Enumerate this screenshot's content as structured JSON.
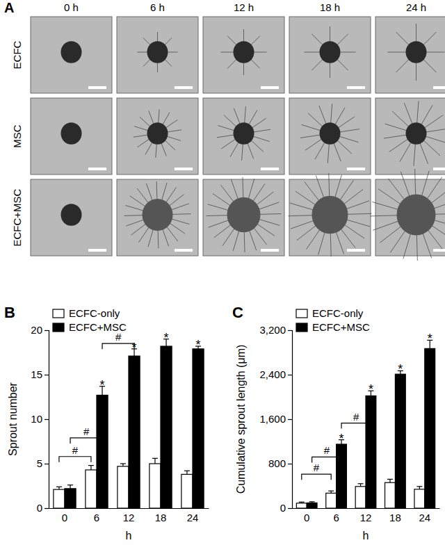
{
  "panel_a": {
    "label": "A",
    "columns": [
      "0 h",
      "6 h",
      "12 h",
      "18 h",
      "24 h"
    ],
    "rows": [
      "ECFC",
      "MSC",
      "ECFC+MSC"
    ]
  },
  "chart_data": [
    {
      "type": "bar",
      "panel": "B",
      "x_label": "h",
      "y_label": "Sprout number",
      "categories": [
        "0",
        "6",
        "12",
        "18",
        "24"
      ],
      "series": [
        {
          "name": "ECFC-only",
          "color": "#ffffff",
          "values": [
            2.1,
            4.3,
            4.7,
            5.0,
            3.8
          ],
          "errors": [
            0.3,
            0.5,
            0.3,
            0.6,
            0.4
          ],
          "significance": [
            null,
            null,
            null,
            null,
            null
          ]
        },
        {
          "name": "ECFC+MSC",
          "color": "#000000",
          "values": [
            2.2,
            12.7,
            17.1,
            18.2,
            17.9
          ],
          "errors": [
            0.4,
            1.0,
            0.8,
            0.8,
            0.3
          ],
          "significance": [
            null,
            "*",
            "*",
            "*",
            "*"
          ]
        }
      ],
      "annotations": [
        {
          "text": "#",
          "y": 5.8,
          "between": [
            {
              "category": "0",
              "series": "ECFC-only"
            },
            {
              "category": "6",
              "series": "ECFC-only"
            }
          ]
        },
        {
          "text": "#",
          "y": 7.9,
          "between": [
            {
              "category": "0",
              "series": "ECFC+MSC"
            },
            {
              "category": "6",
              "series": "ECFC+MSC"
            }
          ]
        },
        {
          "text": "#",
          "y": 18.5,
          "between": [
            {
              "category": "6",
              "series": "ECFC+MSC"
            },
            {
              "category": "12",
              "series": "ECFC+MSC"
            }
          ]
        }
      ],
      "ylim": [
        0,
        20
      ],
      "yticks": [
        0,
        5,
        10,
        15,
        20
      ],
      "grid": false,
      "legend": "upper left"
    },
    {
      "type": "bar",
      "panel": "C",
      "x_label": "h",
      "y_label": "Cumulative sprout length (μm)",
      "categories": [
        "0",
        "6",
        "12",
        "18",
        "24"
      ],
      "series": [
        {
          "name": "ECFC-only",
          "color": "#ffffff",
          "values": [
            90,
            270,
            390,
            460,
            340
          ],
          "errors": [
            20,
            40,
            50,
            60,
            50
          ],
          "significance": [
            null,
            null,
            null,
            null,
            null
          ]
        },
        {
          "name": "ECFC+MSC",
          "color": "#000000",
          "values": [
            95,
            1150,
            2020,
            2410,
            2870
          ],
          "errors": [
            20,
            80,
            90,
            60,
            150
          ],
          "significance": [
            null,
            "*",
            "*",
            "*",
            "*"
          ]
        }
      ],
      "annotations": [
        {
          "text": "#",
          "y": 610,
          "between": [
            {
              "category": "0",
              "series": "ECFC-only"
            },
            {
              "category": "6",
              "series": "ECFC-only"
            }
          ]
        },
        {
          "text": "#",
          "y": 920,
          "between": [
            {
              "category": "0",
              "series": "ECFC+MSC"
            },
            {
              "category": "6",
              "series": "ECFC+MSC"
            }
          ]
        },
        {
          "text": "#",
          "y": 1530,
          "between": [
            {
              "category": "6",
              "series": "ECFC+MSC"
            },
            {
              "category": "12",
              "series": "ECFC+MSC"
            }
          ]
        }
      ],
      "ylim": [
        0,
        3200
      ],
      "yticks": [
        0,
        800,
        {
          "value": 1600,
          "label": "1,600"
        },
        {
          "value": 2400,
          "label": "2,400"
        },
        {
          "value": 3200,
          "label": "3,200"
        }
      ],
      "grid": false,
      "legend": "upper left"
    }
  ]
}
